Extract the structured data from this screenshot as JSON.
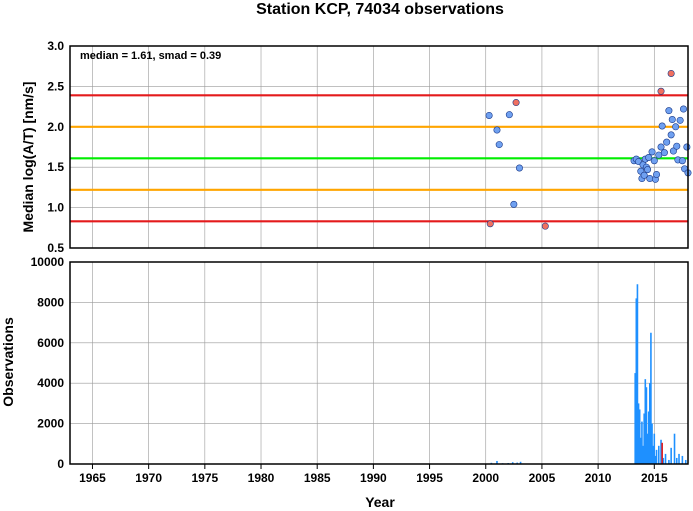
{
  "chart_data": [
    {
      "type": "scatter",
      "title": "Station KCP, 74034 observations",
      "ylabel": "Median log(A/T) [nm/s]",
      "xlim": [
        1963,
        2018
      ],
      "ylim": [
        0.5,
        3.0
      ],
      "yticks": [
        0.5,
        1.0,
        1.5,
        2.0,
        2.5,
        3.0
      ],
      "grid": true,
      "annotation": "median = 1.61, smad = 0.39",
      "reference_lines": [
        {
          "value": 2.39,
          "color": "#e41a1c"
        },
        {
          "value": 2.0,
          "color": "#ffa500"
        },
        {
          "value": 1.61,
          "color": "#00ee00"
        },
        {
          "value": 1.22,
          "color": "#ffa500"
        },
        {
          "value": 0.83,
          "color": "#e41a1c"
        }
      ],
      "series": [
        {
          "color": "#6fa0f0",
          "points": [
            [
              2000.3,
              2.14
            ],
            [
              2001.0,
              1.96
            ],
            [
              2001.2,
              1.78
            ],
            [
              2002.1,
              2.15
            ],
            [
              2002.5,
              1.04
            ],
            [
              2003.0,
              1.49
            ],
            [
              2013.2,
              1.58
            ],
            [
              2013.4,
              1.6
            ],
            [
              2013.6,
              1.57
            ],
            [
              2013.8,
              1.45
            ],
            [
              2013.9,
              1.36
            ],
            [
              2014.0,
              1.53
            ],
            [
              2014.1,
              1.4
            ],
            [
              2014.2,
              1.6
            ],
            [
              2014.3,
              1.5
            ],
            [
              2014.4,
              1.47
            ],
            [
              2014.5,
              1.62
            ],
            [
              2014.6,
              1.36
            ],
            [
              2014.8,
              1.69
            ],
            [
              2015.0,
              1.58
            ],
            [
              2015.1,
              1.35
            ],
            [
              2015.2,
              1.41
            ],
            [
              2015.4,
              1.65
            ],
            [
              2015.6,
              1.75
            ],
            [
              2015.7,
              2.01
            ],
            [
              2015.9,
              1.68
            ],
            [
              2016.1,
              1.81
            ],
            [
              2016.3,
              2.2
            ],
            [
              2016.5,
              1.9
            ],
            [
              2016.6,
              2.09
            ],
            [
              2016.7,
              1.7
            ],
            [
              2016.9,
              2.0
            ],
            [
              2017.0,
              1.76
            ],
            [
              2017.1,
              1.59
            ],
            [
              2017.3,
              2.08
            ],
            [
              2017.5,
              1.58
            ],
            [
              2017.6,
              2.22
            ],
            [
              2017.7,
              1.48
            ],
            [
              2017.9,
              1.75
            ],
            [
              2018.0,
              1.43
            ]
          ]
        },
        {
          "color": "#f07060",
          "points": [
            [
              2000.4,
              0.8
            ],
            [
              2002.7,
              2.3
            ],
            [
              2005.3,
              0.77
            ],
            [
              2015.6,
              2.44
            ],
            [
              2016.5,
              2.66
            ]
          ]
        }
      ]
    },
    {
      "type": "bar",
      "xlabel": "Year",
      "ylabel": "Observations",
      "xlim": [
        1963,
        2018
      ],
      "ylim": [
        0,
        10000
      ],
      "xticks": [
        1965,
        1970,
        1975,
        1980,
        1985,
        1990,
        1995,
        2000,
        2005,
        2010,
        2015
      ],
      "yticks": [
        0,
        2000,
        4000,
        6000,
        8000,
        10000
      ],
      "grid": true,
      "series": [
        {
          "color": "#1e90ff",
          "points": [
            [
              2000.5,
              60
            ],
            [
              2001.0,
              150
            ],
            [
              2001.5,
              40
            ],
            [
              2002.0,
              50
            ],
            [
              2002.4,
              90
            ],
            [
              2002.8,
              70
            ],
            [
              2003.1,
              110
            ],
            [
              2013.3,
              4500
            ],
            [
              2013.4,
              8200
            ],
            [
              2013.5,
              8900
            ],
            [
              2013.6,
              3000
            ],
            [
              2013.7,
              2700
            ],
            [
              2013.8,
              1300
            ],
            [
              2013.9,
              2100
            ],
            [
              2014.0,
              900
            ],
            [
              2014.1,
              2500
            ],
            [
              2014.2,
              4200
            ],
            [
              2014.3,
              3800
            ],
            [
              2014.4,
              1500
            ],
            [
              2014.5,
              2600
            ],
            [
              2014.6,
              4000
            ],
            [
              2014.7,
              6500
            ],
            [
              2014.8,
              2000
            ],
            [
              2014.9,
              900
            ],
            [
              2015.0,
              1500
            ],
            [
              2015.1,
              400
            ],
            [
              2015.2,
              700
            ],
            [
              2015.4,
              900
            ],
            [
              2015.6,
              1200
            ],
            [
              2015.8,
              300
            ],
            [
              2016.0,
              500
            ],
            [
              2016.3,
              200
            ],
            [
              2016.5,
              800
            ],
            [
              2016.8,
              1500
            ],
            [
              2017.0,
              300
            ],
            [
              2017.2,
              500
            ],
            [
              2017.5,
              400
            ],
            [
              2017.8,
              200
            ]
          ]
        },
        {
          "color": "#e41a1c",
          "points": [
            [
              2015.7,
              1050
            ]
          ]
        }
      ]
    }
  ]
}
